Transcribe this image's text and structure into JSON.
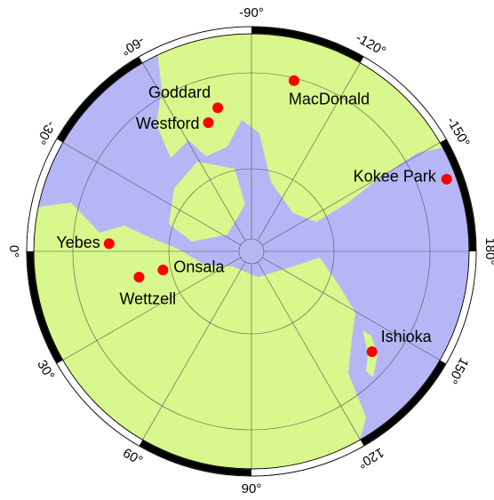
{
  "map": {
    "meridians": [
      {
        "value": -90,
        "label": "-90°"
      },
      {
        "value": -120,
        "label": "-120°"
      },
      {
        "value": -150,
        "label": "-150°"
      },
      {
        "value": 180,
        "label": "180°"
      },
      {
        "value": 150,
        "label": "150°"
      },
      {
        "value": 120,
        "label": "120°"
      },
      {
        "value": 90,
        "label": "90°"
      },
      {
        "value": 60,
        "label": "60°"
      },
      {
        "value": 30,
        "label": "30°"
      },
      {
        "value": 0,
        "label": "0°"
      },
      {
        "value": -30,
        "label": "-30°"
      },
      {
        "value": -60,
        "label": "-60°"
      }
    ],
    "stations": [
      {
        "name": "Goddard",
        "lon": -76.8,
        "lat": 39.0
      },
      {
        "name": "Westford",
        "lon": -71.5,
        "lat": 42.6
      },
      {
        "name": "MacDonald",
        "lon": -104.0,
        "lat": 30.7
      },
      {
        "name": "Kokee Park",
        "lon": -159.7,
        "lat": 22.1
      },
      {
        "name": "Yebes",
        "lon": -3.1,
        "lat": 40.5
      },
      {
        "name": "Wettzell",
        "lon": 12.9,
        "lat": 49.1
      },
      {
        "name": "Onsala",
        "lon": 11.9,
        "lat": 57.4
      },
      {
        "name": "Ishioka",
        "lon": 140.2,
        "lat": 36.2
      }
    ]
  }
}
